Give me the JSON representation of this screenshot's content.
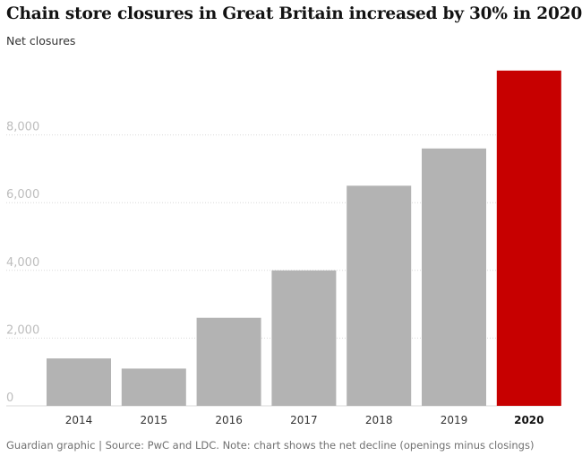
{
  "chart_data": {
    "type": "bar",
    "title": "Chain store closures in Great Britain increased by 30% in 2020",
    "ylabel": "Net closures",
    "categories": [
      "2014",
      "2015",
      "2016",
      "2017",
      "2018",
      "2019",
      "2020"
    ],
    "values": [
      1400,
      1100,
      2600,
      4000,
      6500,
      7600,
      9900
    ],
    "highlight_category": "2020",
    "yticks": [
      0,
      2000,
      4000,
      6000,
      8000
    ],
    "ytick_labels": [
      "0",
      "2,000",
      "4,000",
      "6,000",
      "8,000"
    ],
    "ylim": [
      0,
      10000
    ],
    "grid": true,
    "colors": {
      "bar": "#b3b3b3",
      "highlight": "#c70000",
      "grid": "#d9d9d9"
    },
    "footer": "Guardian graphic | Source: PwC and LDC. Note: chart shows the net decline (openings minus closings)"
  }
}
